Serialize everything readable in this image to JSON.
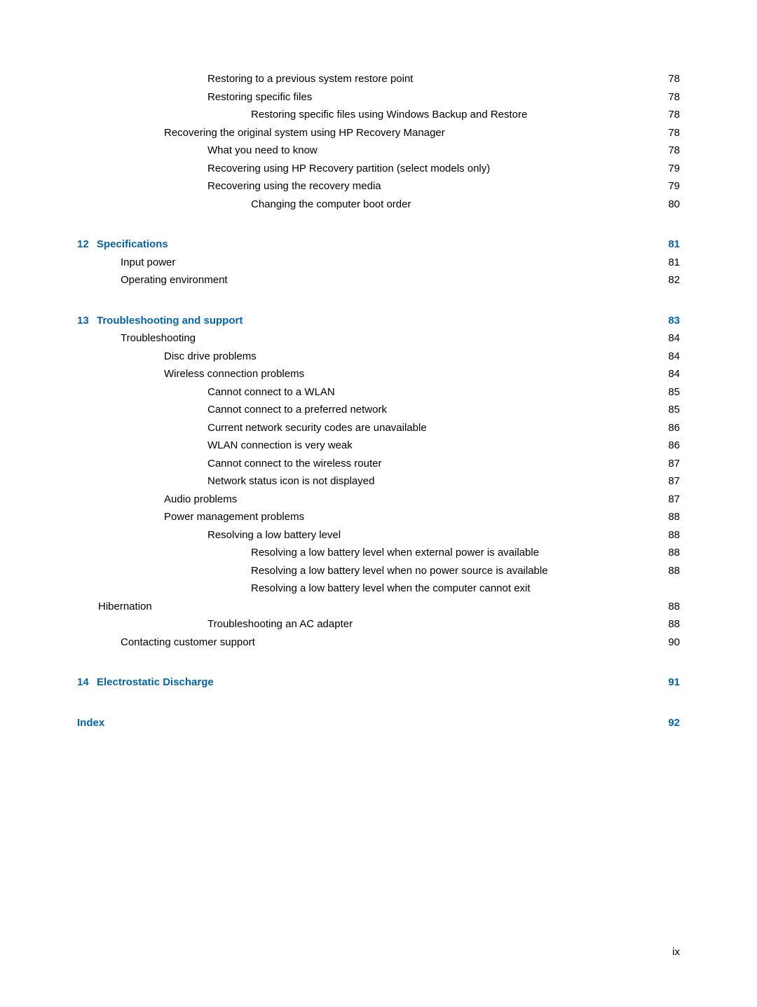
{
  "colors": {
    "link": "#0564a4",
    "text": "#000000",
    "bg": "#ffffff"
  },
  "fontsize": 15,
  "lineheight": 1.7,
  "entries": [
    {
      "indent": 3,
      "label": "Restoring to a previous system restore point",
      "page": "78",
      "blue": false
    },
    {
      "indent": 3,
      "label": "Restoring specific files",
      "page": "78",
      "blue": false
    },
    {
      "indent": 4,
      "label": "Restoring specific files using Windows Backup and Restore",
      "page": "78",
      "blue": false
    },
    {
      "indent": 2,
      "label": "Recovering the original system using HP Recovery Manager",
      "page": "78",
      "blue": false
    },
    {
      "indent": 3,
      "label": "What you need to know",
      "page": "78",
      "blue": false
    },
    {
      "indent": 3,
      "label": "Recovering using HP Recovery partition (select models only)",
      "page": "79",
      "blue": false
    },
    {
      "indent": 3,
      "label": "Recovering using the recovery media",
      "page": "79",
      "blue": false
    },
    {
      "indent": 4,
      "label": "Changing the computer boot order",
      "page": "80",
      "blue": false
    },
    {
      "chapter": "12",
      "indent": 0,
      "label": "Specifications",
      "page": "81",
      "blue": true,
      "section": true
    },
    {
      "indent": 1,
      "label": "Input power",
      "page": "81",
      "blue": false
    },
    {
      "indent": 1,
      "label": "Operating environment",
      "page": "82",
      "blue": false
    },
    {
      "chapter": "13",
      "indent": 0,
      "label": "Troubleshooting and support",
      "page": "83",
      "blue": true,
      "section": true
    },
    {
      "indent": 1,
      "label": "Troubleshooting",
      "page": "84",
      "blue": false
    },
    {
      "indent": 2,
      "label": "Disc drive problems",
      "page": "84",
      "blue": false
    },
    {
      "indent": 2,
      "label": "Wireless connection problems",
      "page": "84",
      "blue": false
    },
    {
      "indent": 3,
      "label": "Cannot connect to a WLAN",
      "page": "85",
      "blue": false
    },
    {
      "indent": 3,
      "label": "Cannot connect to a preferred network",
      "page": "85",
      "blue": false
    },
    {
      "indent": 3,
      "label": "Current network security codes are unavailable",
      "page": "86",
      "blue": false
    },
    {
      "indent": 3,
      "label": "WLAN connection is very weak",
      "page": "86",
      "blue": false
    },
    {
      "indent": 3,
      "label": "Cannot connect to the wireless router",
      "page": "87",
      "blue": false
    },
    {
      "indent": 3,
      "label": "Network status icon is not displayed",
      "page": "87",
      "blue": false
    },
    {
      "indent": 2,
      "label": "Audio problems",
      "page": "87",
      "blue": false
    },
    {
      "indent": 2,
      "label": "Power management problems",
      "page": "88",
      "blue": false
    },
    {
      "indent": 3,
      "label": "Resolving a low battery level",
      "page": "88",
      "blue": false
    },
    {
      "indent": 4,
      "label": "Resolving a low battery level when external power is available",
      "page": "88",
      "blue": false,
      "nodots": true
    },
    {
      "indent": 4,
      "label": "Resolving a low battery level when no power source is available",
      "page": "88",
      "blue": false,
      "nodots": true
    },
    {
      "indent": 4,
      "label": "Resolving a low battery level when the computer cannot exit",
      "page": "",
      "blue": false,
      "nodots": true,
      "nopage": true
    },
    {
      "indent": 4,
      "label": "Hibernation",
      "page": "88",
      "blue": false,
      "subwrap": true
    },
    {
      "indent": 3,
      "label": "Troubleshooting an AC adapter",
      "page": "88",
      "blue": false
    },
    {
      "indent": 1,
      "label": "Contacting customer support",
      "page": "90",
      "blue": false
    },
    {
      "chapter": "14",
      "indent": 0,
      "label": "Electrostatic Discharge",
      "page": "91",
      "blue": true,
      "section": true
    },
    {
      "indent": 0,
      "label": "Index",
      "page": "92",
      "blue": true,
      "section": true
    }
  ],
  "footer": "ix"
}
